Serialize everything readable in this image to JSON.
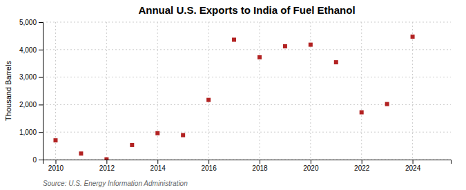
{
  "chart_data": {
    "type": "scatter",
    "title": "Annual U.S. Exports to India of Fuel Ethanol",
    "ylabel": "Thousand Barrels",
    "annotations": [
      "Source: U.S. Energy Information Administration"
    ],
    "x": [
      2010,
      2011,
      2012,
      2013,
      2014,
      2015,
      2016,
      2017,
      2018,
      2019,
      2020,
      2021,
      2022,
      2023,
      2024
    ],
    "values": [
      700,
      220,
      10,
      530,
      960,
      890,
      2170,
      4360,
      3720,
      4120,
      4180,
      3540,
      1720,
      2020,
      4470
    ],
    "color": "#b22222",
    "marker": "square",
    "xlim": [
      2009.5,
      2025.5
    ],
    "ylim": [
      0,
      5000
    ],
    "xticks": [
      2010,
      2012,
      2014,
      2016,
      2018,
      2020,
      2022,
      2024
    ],
    "yticks": [
      0,
      {
        "value": 1000,
        "label": "1,000"
      },
      {
        "value": 2000,
        "label": "2,000"
      },
      {
        "value": 3000,
        "label": "3,000"
      },
      {
        "value": 4000,
        "label": "4,000"
      },
      {
        "value": 5000,
        "label": "5,000"
      }
    ],
    "grid": true
  }
}
